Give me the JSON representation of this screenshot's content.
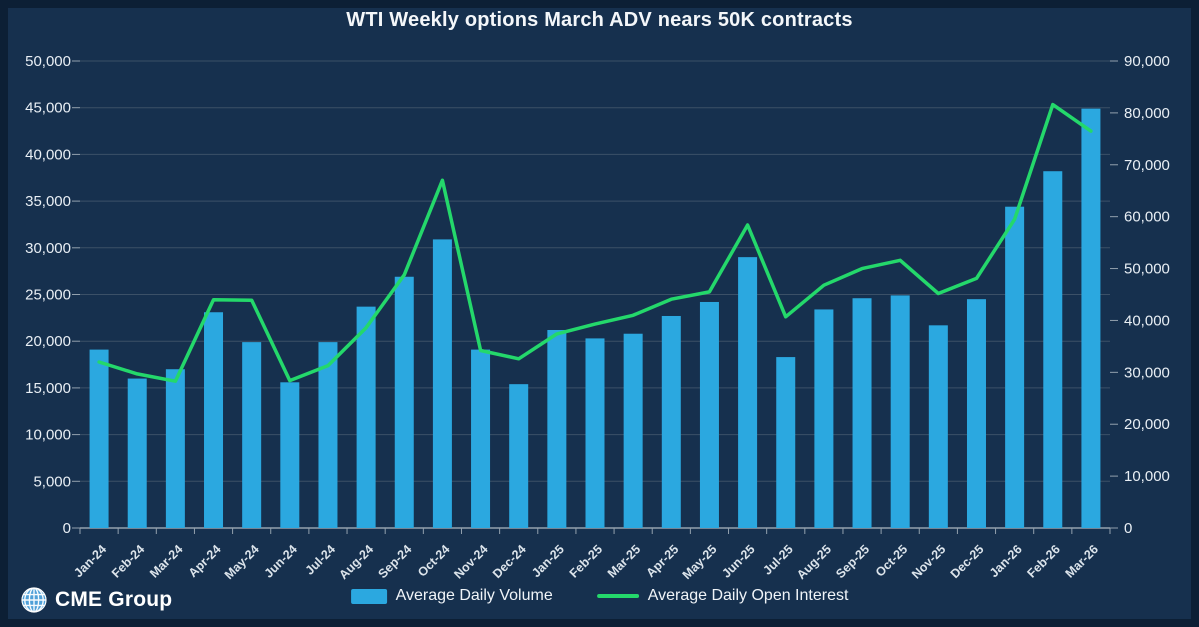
{
  "title": "WTI Weekly options March ADV nears 50K contracts",
  "branding": {
    "logo_text": "CME Group",
    "globe_icon": "globe-grid-icon",
    "globe_color": "#4FA0D8"
  },
  "colors": {
    "background": "#16304E",
    "frame": "#0C1F35",
    "bar": "#2BA8E0",
    "line": "#24D86B",
    "gridline": "#5A6B7C",
    "axis": "#93A1AE",
    "text": "#E9EFF5"
  },
  "chart_data": {
    "type": "combo-bar-line",
    "title": "WTI Weekly options March ADV nears 50K contracts",
    "grid": true,
    "legend_position": "bottom",
    "categories": [
      "Jan-24",
      "Feb-24",
      "Mar-24",
      "Apr-24",
      "May-24",
      "Jun-24",
      "Jul-24",
      "Aug-24",
      "Sep-24",
      "Oct-24",
      "Nov-24",
      "Dec-24",
      "Jan-25",
      "Feb-25",
      "Mar-25",
      "Apr-25",
      "May-25",
      "Jun-25",
      "Jul-25",
      "Aug-25",
      "Sep-25",
      "Oct-25",
      "Nov-25",
      "Dec-25",
      "Jan-26",
      "Feb-26",
      "Mar-26"
    ],
    "series": [
      {
        "name": "Average Daily Volume",
        "type": "bar",
        "axis": "left",
        "color": "#2BA8E0",
        "values": [
          19100,
          16000,
          17000,
          23100,
          19900,
          15600,
          19900,
          23700,
          26900,
          30900,
          19100,
          15400,
          21200,
          20300,
          20800,
          22700,
          24200,
          29000,
          18300,
          23400,
          24600,
          24900,
          21700,
          24500,
          34400,
          38200,
          44900
        ]
      },
      {
        "name": "Average Daily Open Interest",
        "type": "line",
        "axis": "right",
        "color": "#24D86B",
        "values": [
          32000,
          29700,
          28300,
          44000,
          43900,
          28400,
          31300,
          38600,
          48800,
          67000,
          34200,
          32600,
          37400,
          39300,
          41000,
          44100,
          45500,
          58400,
          40700,
          46800,
          50000,
          51600,
          45200,
          48100,
          59500,
          81600,
          76500
        ]
      }
    ],
    "left_axis": {
      "min": 0,
      "max": 50000,
      "step": 5000,
      "tick_labels": [
        "0",
        "5,000",
        "10,000",
        "15,000",
        "20,000",
        "25,000",
        "30,000",
        "35,000",
        "40,000",
        "45,000",
        "50,000"
      ]
    },
    "right_axis": {
      "min": 0,
      "max": 90000,
      "step": 10000,
      "tick_labels": [
        "0",
        "10,000",
        "20,000",
        "30,000",
        "40,000",
        "50,000",
        "60,000",
        "70,000",
        "80,000",
        "90,000"
      ]
    }
  }
}
